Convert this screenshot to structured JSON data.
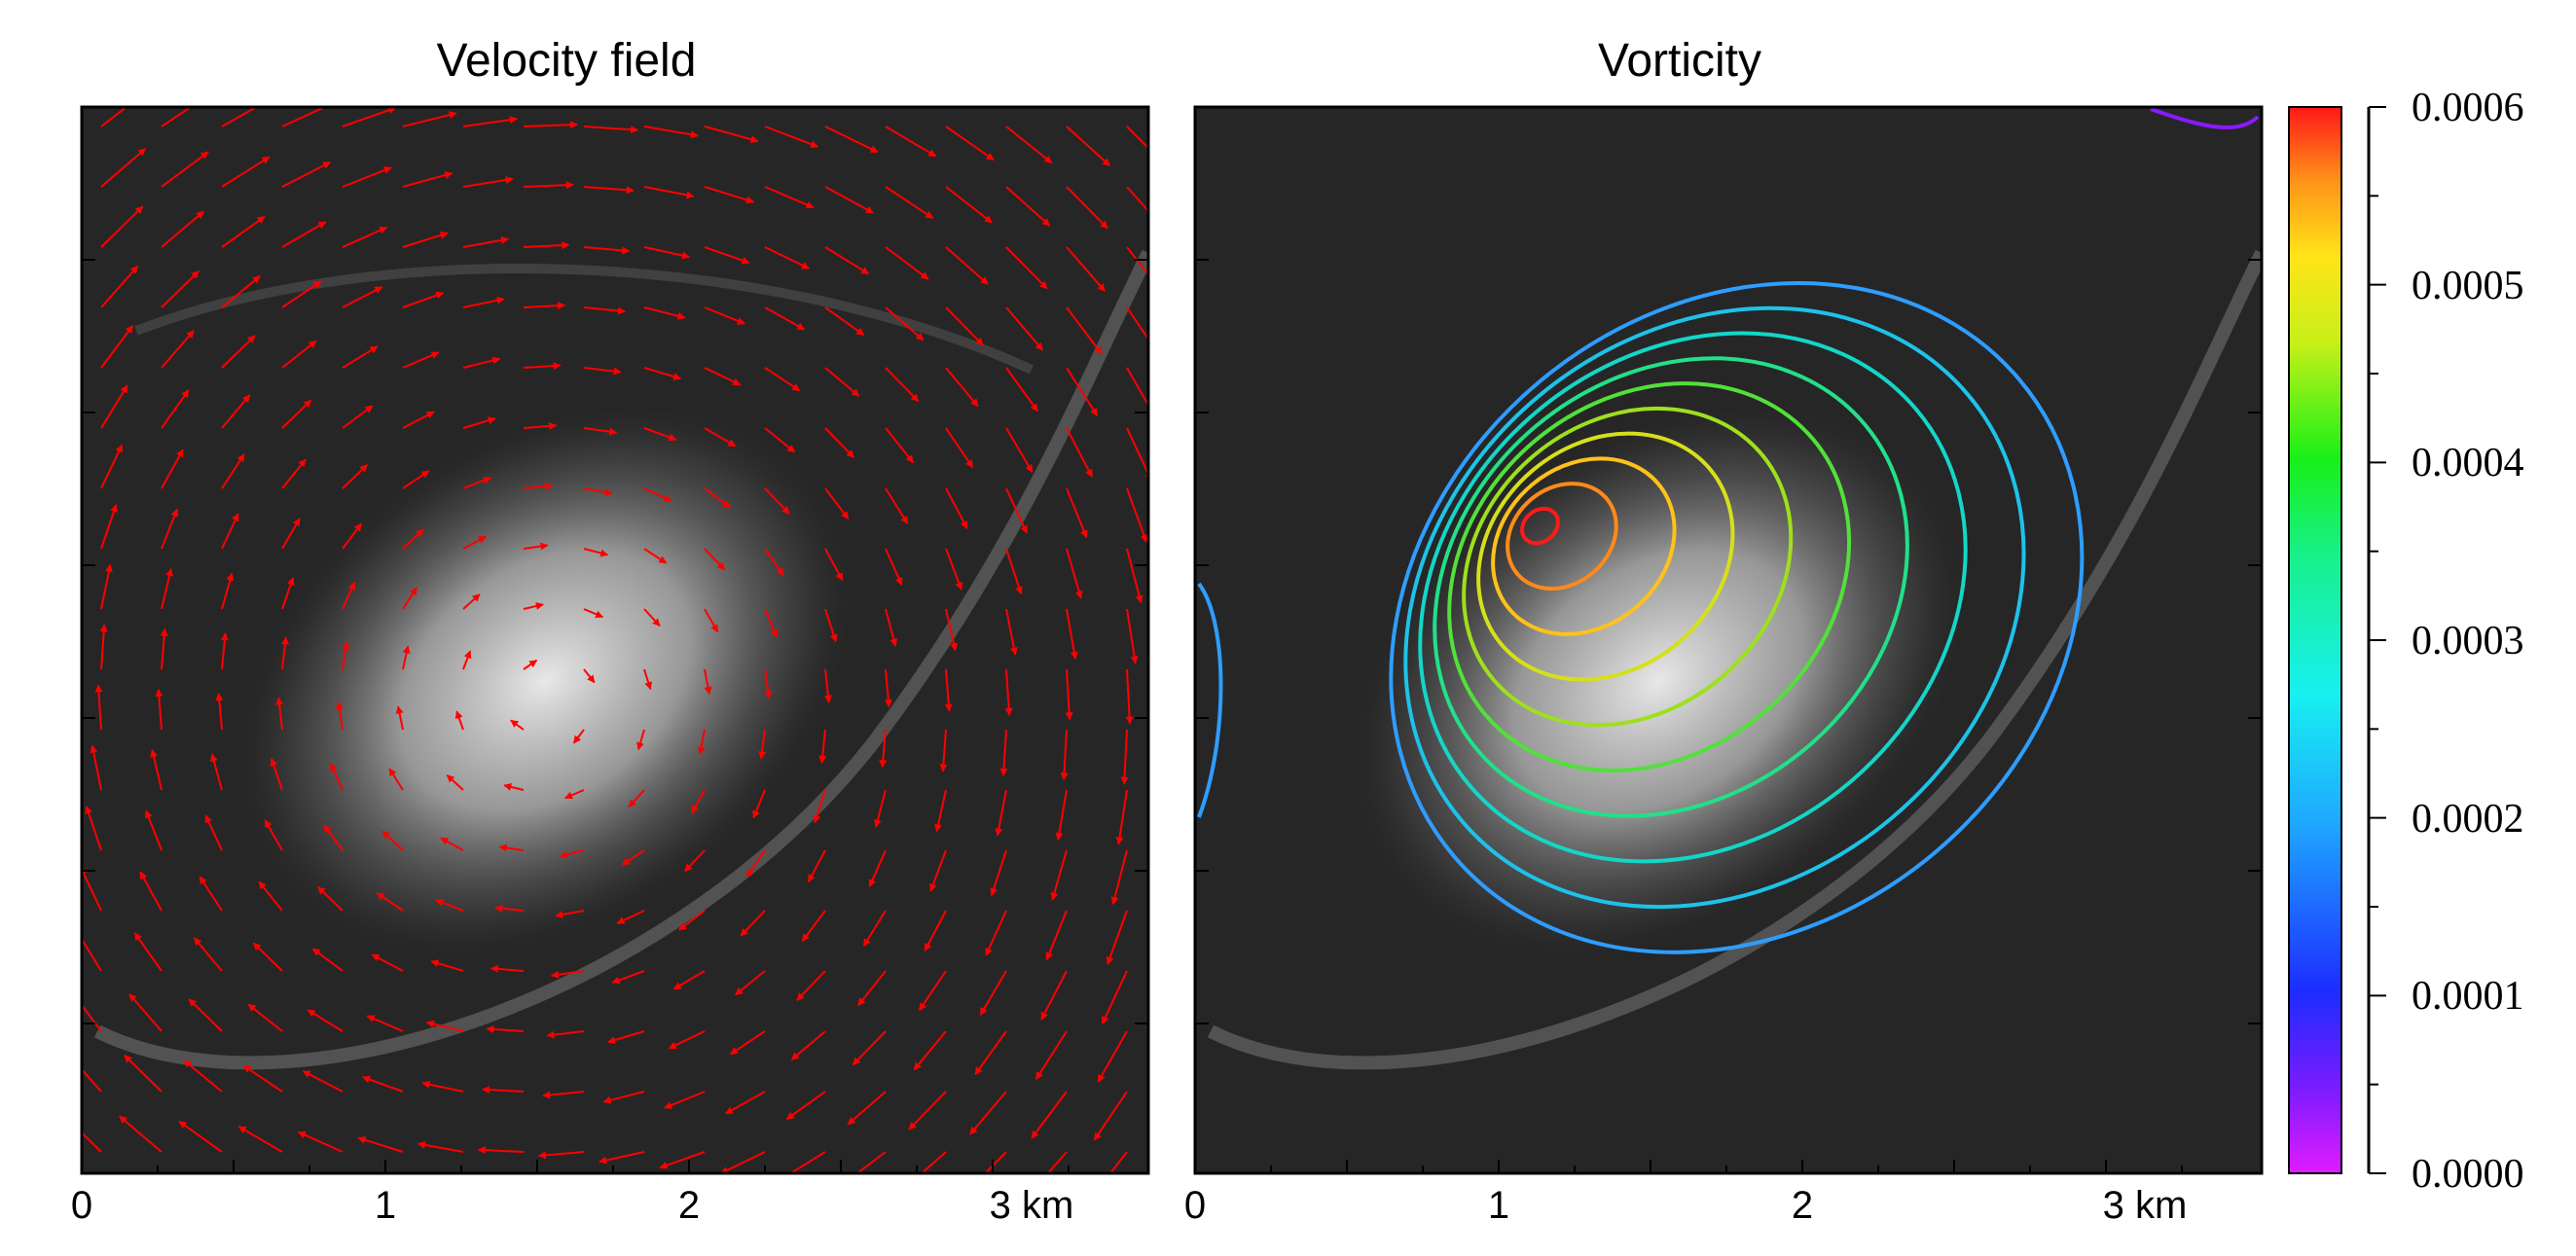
{
  "panels": [
    {
      "title": "Velocity field",
      "x_ticks": [
        "0",
        "1",
        "2",
        "3 km"
      ]
    },
    {
      "title": "Vorticity",
      "x_ticks": [
        "0",
        "1",
        "2",
        "3 km"
      ]
    }
  ],
  "colorbar": {
    "ticks": [
      "0.0006",
      "0.0005",
      "0.0004",
      "0.0003",
      "0.0002",
      "0.0001",
      "0.0000"
    ],
    "range": [
      0.0,
      0.0006
    ]
  },
  "colors": {
    "vector": "#ff0000",
    "contours": [
      "#2f9dff",
      "#1ec2e8",
      "#14d6c6",
      "#22e08a",
      "#52e03a",
      "#9ee01c",
      "#d6e01a",
      "#ffc21a",
      "#ff8a1a",
      "#ff1a1a"
    ]
  },
  "icons": [
    "vector-arrows",
    "vorticity-contours",
    "colorbar-gradient"
  ]
}
